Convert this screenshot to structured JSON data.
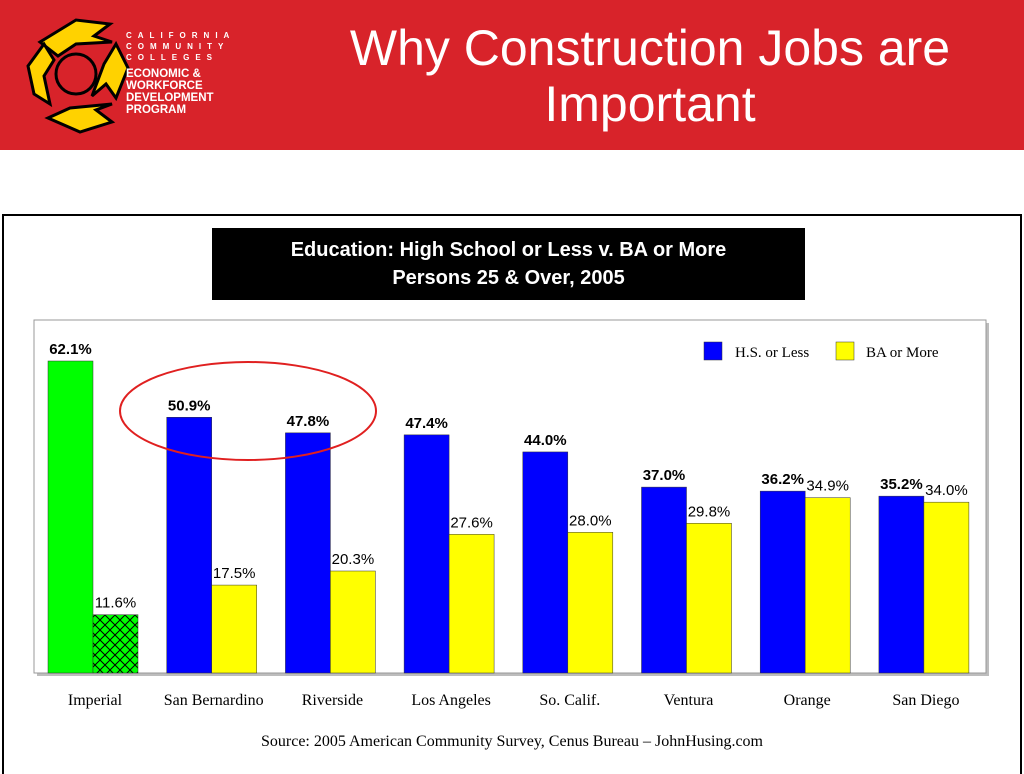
{
  "header": {
    "title": "Why Construction Jobs are Important",
    "logo": {
      "line1": "CALIFORNIA",
      "line2": "COMMUNITY",
      "line3": "COLLEGES",
      "program": [
        "ECONOMIC &",
        "WORKFORCE",
        "DEVELOPMENT",
        "PROGRAM"
      ]
    }
  },
  "colors": {
    "header_bg": "#d8232a",
    "hs": "#0000ff",
    "ba": "#ffff00",
    "imperial_hs": "#00ff00",
    "imperial_ba": "#00cc00",
    "highlight": "#e02020"
  },
  "chart_data": {
    "type": "bar",
    "title": "Education: High School or Less v. BA or More",
    "subtitle": "Persons 25 & Over, 2005",
    "categories": [
      "Imperial",
      "San Bernardino",
      "Riverside",
      "Los Angeles",
      "So. Calif.",
      "Ventura",
      "Orange",
      "San Diego"
    ],
    "series": [
      {
        "name": "H.S. or Less",
        "values": [
          62.1,
          50.9,
          47.8,
          47.4,
          44.0,
          37.0,
          36.2,
          35.2
        ],
        "labels": [
          "62.1%",
          "50.9%",
          "47.8%",
          "47.4%",
          "44.0%",
          "37.0%",
          "36.2%",
          "35.2%"
        ]
      },
      {
        "name": "BA or More",
        "values": [
          11.6,
          17.5,
          20.3,
          27.6,
          28.0,
          29.8,
          34.9,
          34.0
        ],
        "labels": [
          "11.6%",
          "17.5%",
          "20.3%",
          "27.6%",
          "28.0%",
          "29.8%",
          "34.9%",
          "34.0%"
        ]
      }
    ],
    "ylim": [
      0,
      70
    ],
    "grid": false,
    "legend": "top-right",
    "annotations": [
      "circle highlighting San Bernardino and Riverside"
    ]
  },
  "source": "Source: 2005 American Community Survey, Cenus Bureau – JohnHusing.com"
}
